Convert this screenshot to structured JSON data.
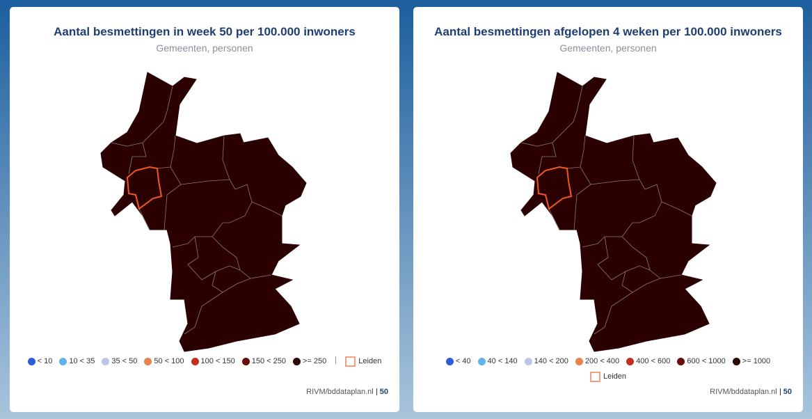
{
  "panels": [
    {
      "title": "Aantal besmettingen in week 50 per 100.000 inwoners",
      "subtitle": "Gemeenten, personen",
      "legend": {
        "items": [
          {
            "label": "< 10",
            "color": "#2b5fd9"
          },
          {
            "label": "10 < 35",
            "color": "#5fb4f0"
          },
          {
            "label": "35 < 50",
            "color": "#c0c4e6"
          },
          {
            "label": "50 < 100",
            "color": "#e8834a"
          },
          {
            "label": "100 < 150",
            "color": "#c03020"
          },
          {
            "label": "150 < 250",
            "color": "#6a0a0a"
          },
          {
            "label": ">= 250",
            "color": "#2a0505"
          }
        ],
        "highlight": "Leiden"
      },
      "source": "RIVM/bddataplan.nl",
      "week": "50"
    },
    {
      "title": "Aantal besmettingen afgelopen 4 weken per 100.000 inwoners",
      "subtitle": "Gemeenten, personen",
      "legend": {
        "items": [
          {
            "label": "< 40",
            "color": "#2b5fd9"
          },
          {
            "label": "40 < 140",
            "color": "#5fb4f0"
          },
          {
            "label": "140 < 200",
            "color": "#c0c4e6"
          },
          {
            "label": "200 < 400",
            "color": "#e8834a"
          },
          {
            "label": "400 < 600",
            "color": "#c03020"
          },
          {
            "label": "600 < 1000",
            "color": "#6a0a0a"
          },
          {
            "label": ">= 1000",
            "color": "#2a0505"
          }
        ],
        "highlight": "Leiden"
      },
      "source": "RIVM/bddataplan.nl",
      "week": "50"
    }
  ]
}
